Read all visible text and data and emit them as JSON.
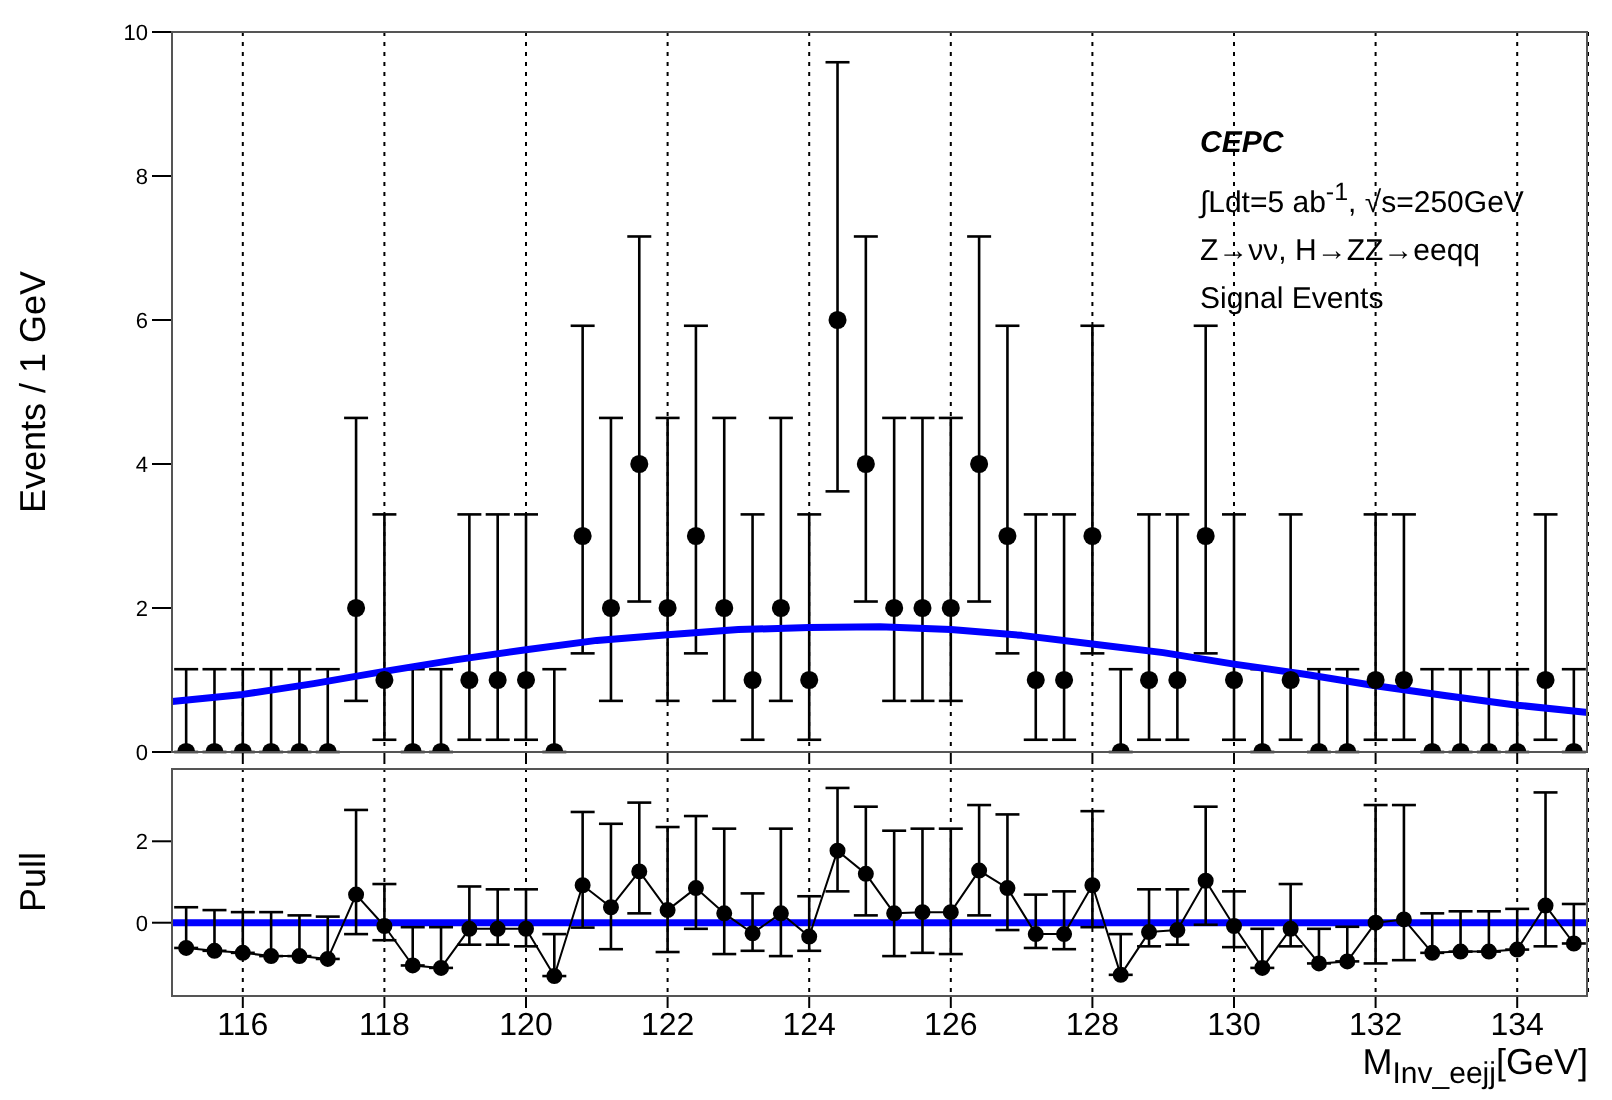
{
  "chart_data": [
    {
      "type": "scatter",
      "ylabel": "Events / 1 GeV",
      "xlim": [
        115,
        135
      ],
      "xticks": [
        116,
        118,
        120,
        122,
        124,
        126,
        128,
        130,
        132,
        134
      ],
      "ylim": [
        0,
        10
      ],
      "yticks": [
        0,
        2,
        4,
        6,
        8,
        10
      ],
      "grid": "x",
      "tick_labels": "y",
      "annotations": [
        "CEPC",
        "∫Ldt=5 ab$^{-1}$, √s=250GeV",
        "Z→νν, H→ZZ→eeqq",
        "Signal Events"
      ],
      "series": [
        {
          "type": "scatter",
          "marker": "circle",
          "color": "#000000",
          "x": [
            115.2,
            115.6,
            116.0,
            116.4,
            116.8,
            117.2,
            117.6,
            118.0,
            118.4,
            118.8,
            119.2,
            119.6,
            120.0,
            120.4,
            120.8,
            121.2,
            121.6,
            122.0,
            122.4,
            122.8,
            123.2,
            123.6,
            124.0,
            124.4,
            124.8,
            125.2,
            125.6,
            126.0,
            126.4,
            126.8,
            127.2,
            127.6,
            128.0,
            128.4,
            128.8,
            129.2,
            129.6,
            130.0,
            130.4,
            130.8,
            131.2,
            131.6,
            132.0,
            132.4,
            132.8,
            133.2,
            133.6,
            134.0,
            134.4,
            134.8
          ],
          "values": [
            0,
            0,
            0,
            0,
            0,
            0,
            2,
            1,
            0,
            0,
            1,
            1,
            1,
            0,
            3,
            2,
            4,
            2,
            3,
            2,
            1,
            2,
            1,
            6,
            4,
            2,
            2,
            2,
            4,
            3,
            1,
            1,
            3,
            0,
            1,
            1,
            3,
            1,
            0,
            1,
            0,
            0,
            1,
            1,
            0,
            0,
            0,
            0,
            1,
            0
          ],
          "errors": [
            [
              0,
              1.15
            ],
            [
              0,
              1.15
            ],
            [
              0,
              1.15
            ],
            [
              0,
              1.15
            ],
            [
              0,
              1.15
            ],
            [
              0,
              1.15
            ],
            [
              0.71,
              4.64
            ],
            [
              0.17,
              3.3
            ],
            [
              0,
              1.15
            ],
            [
              0,
              1.15
            ],
            [
              0.17,
              3.3
            ],
            [
              0.17,
              3.3
            ],
            [
              0.17,
              3.3
            ],
            [
              0,
              1.15
            ],
            [
              1.37,
              5.92
            ],
            [
              0.71,
              4.64
            ],
            [
              2.09,
              7.16
            ],
            [
              0.71,
              4.64
            ],
            [
              1.37,
              5.92
            ],
            [
              0.71,
              4.64
            ],
            [
              0.17,
              3.3
            ],
            [
              0.71,
              4.64
            ],
            [
              0.17,
              3.3
            ],
            [
              3.62,
              9.58
            ],
            [
              2.09,
              7.16
            ],
            [
              0.71,
              4.64
            ],
            [
              0.71,
              4.64
            ],
            [
              0.71,
              4.64
            ],
            [
              2.09,
              7.16
            ],
            [
              1.37,
              5.92
            ],
            [
              0.17,
              3.3
            ],
            [
              0.17,
              3.3
            ],
            [
              1.37,
              5.92
            ],
            [
              0,
              1.15
            ],
            [
              0.17,
              3.3
            ],
            [
              0.17,
              3.3
            ],
            [
              1.37,
              5.92
            ],
            [
              0.17,
              3.3
            ],
            [
              0,
              1.15
            ],
            [
              0.17,
              3.3
            ],
            [
              0,
              1.15
            ],
            [
              0,
              1.15
            ],
            [
              0.17,
              3.3
            ],
            [
              0.17,
              3.3
            ],
            [
              0,
              1.15
            ],
            [
              0,
              1.15
            ],
            [
              0,
              1.15
            ],
            [
              0,
              1.15
            ],
            [
              0.17,
              3.3
            ],
            [
              0,
              1.15
            ]
          ]
        },
        {
          "type": "line",
          "marker": "none",
          "color": "#0000ff",
          "x": [
            115,
            116,
            117,
            118,
            119,
            120,
            121,
            122,
            123,
            124,
            125,
            126,
            127,
            128,
            129,
            130,
            131,
            132,
            133,
            134,
            135
          ],
          "values": [
            0.7,
            0.8,
            0.95,
            1.12,
            1.28,
            1.42,
            1.55,
            1.63,
            1.7,
            1.73,
            1.74,
            1.7,
            1.62,
            1.5,
            1.38,
            1.22,
            1.08,
            0.92,
            0.78,
            0.65,
            0.55
          ]
        }
      ]
    },
    {
      "type": "line",
      "ylabel": "Pull",
      "xlabel": "M$_{Inv_eejj}$[GeV]",
      "xlim": [
        115,
        135
      ],
      "xticks": [
        116,
        118,
        120,
        122,
        124,
        126,
        128,
        130,
        132,
        134
      ],
      "ylim": [
        -1.8,
        3.8
      ],
      "yticks": [
        0,
        2
      ],
      "grid": "x",
      "marker": "circle",
      "ref_lines": [
        {
          "axis": "y",
          "value": 0,
          "color": "#0000ff"
        }
      ],
      "series": [
        {
          "color": "#000000",
          "x": [
            115.2,
            115.6,
            116.0,
            116.4,
            116.8,
            117.2,
            117.6,
            118.0,
            118.4,
            118.8,
            119.2,
            119.6,
            120.0,
            120.4,
            120.8,
            121.2,
            121.6,
            122.0,
            122.4,
            122.8,
            123.2,
            123.6,
            124.0,
            124.4,
            124.8,
            125.2,
            125.6,
            126.0,
            126.4,
            126.8,
            127.2,
            127.6,
            128.0,
            128.4,
            128.8,
            129.2,
            129.6,
            130.0,
            130.4,
            130.8,
            131.2,
            131.6,
            132.0,
            132.4,
            132.8,
            133.2,
            133.6,
            134.0,
            134.4,
            134.8
          ],
          "values": [
            -0.62,
            -0.69,
            -0.74,
            -0.82,
            -0.82,
            -0.89,
            0.69,
            -0.08,
            -1.05,
            -1.11,
            -0.15,
            -0.15,
            -0.15,
            -1.31,
            0.92,
            0.38,
            1.26,
            0.31,
            0.85,
            0.23,
            -0.26,
            0.23,
            -0.34,
            1.77,
            1.2,
            0.23,
            0.26,
            0.26,
            1.28,
            0.85,
            -0.28,
            -0.28,
            0.92,
            -1.28,
            -0.23,
            -0.18,
            1.03,
            -0.08,
            -1.11,
            -0.15,
            -1.0,
            -0.95,
            0,
            0.08,
            -0.74,
            -0.71,
            -0.71,
            -0.66,
            0.42,
            -0.51
          ],
          "errors": [
            [
              -0.62,
              0.38
            ],
            [
              -0.69,
              0.31
            ],
            [
              -0.74,
              0.26
            ],
            [
              -0.82,
              0.26
            ],
            [
              -0.82,
              0.18
            ],
            [
              -0.89,
              0.15
            ],
            [
              -0.28,
              2.77
            ],
            [
              -0.43,
              0.95
            ],
            [
              -1.05,
              -0.11
            ],
            [
              -1.11,
              -0.11
            ],
            [
              -0.54,
              0.89
            ],
            [
              -0.54,
              0.82
            ],
            [
              -0.58,
              0.82
            ],
            [
              -1.31,
              -0.28
            ],
            [
              -0.12,
              2.72
            ],
            [
              -0.65,
              2.43
            ],
            [
              0.23,
              2.95
            ],
            [
              -0.72,
              2.35
            ],
            [
              -0.15,
              2.62
            ],
            [
              -0.77,
              2.31
            ],
            [
              -0.69,
              0.72
            ],
            [
              -0.82,
              2.31
            ],
            [
              -0.69,
              0.65
            ],
            [
              0.77,
              3.31
            ],
            [
              0.18,
              2.85
            ],
            [
              -0.82,
              2.26
            ],
            [
              -0.74,
              2.31
            ],
            [
              -0.77,
              2.31
            ],
            [
              0.18,
              2.89
            ],
            [
              -0.18,
              2.66
            ],
            [
              -0.62,
              0.69
            ],
            [
              -0.65,
              0.77
            ],
            [
              -0.11,
              2.74
            ],
            [
              -1.28,
              -0.28
            ],
            [
              -0.58,
              0.82
            ],
            [
              -0.54,
              0.82
            ],
            [
              -0.05,
              2.85
            ],
            [
              -0.6,
              0.77
            ],
            [
              -1.11,
              -0.15
            ],
            [
              -0.58,
              0.95
            ],
            [
              -1.0,
              -0.15
            ],
            [
              -0.95,
              -0.1
            ],
            [
              -1.0,
              2.89
            ],
            [
              -0.92,
              2.89
            ],
            [
              -0.74,
              0.23
            ],
            [
              -0.71,
              0.28
            ],
            [
              -0.71,
              0.28
            ],
            [
              -0.66,
              0.34
            ],
            [
              -0.58,
              3.2
            ],
            [
              -0.51,
              0.46
            ]
          ]
        }
      ]
    }
  ]
}
